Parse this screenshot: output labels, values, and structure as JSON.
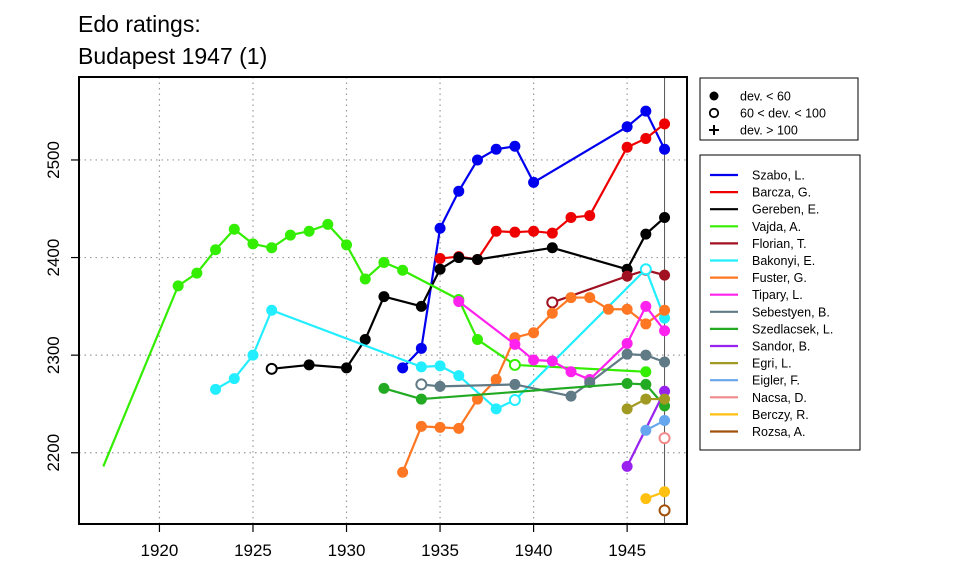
{
  "chart_data": {
    "type": "line",
    "title": [
      "Edo ratings:",
      "Budapest 1947 (1)"
    ],
    "xlabel": "",
    "ylabel": "",
    "xlim": [
      1915.7,
      1948.2
    ],
    "ylim": [
      2127,
      2585
    ],
    "xticks": [
      1920,
      1925,
      1930,
      1935,
      1940,
      1945
    ],
    "yticks": [
      2200,
      2300,
      2400,
      2500
    ],
    "grid": true,
    "vline": 1947,
    "legend_placement": "right",
    "marker_legend": [
      {
        "symbol": "filled-circle",
        "label": "dev. < 60"
      },
      {
        "symbol": "open-circle",
        "label": "60 < dev. < 100"
      },
      {
        "symbol": "plus",
        "label": "dev. > 100"
      }
    ],
    "series": [
      {
        "name": "Szabo, L.",
        "color": "#0000ee",
        "x": [
          1933,
          1934,
          1935,
          1936,
          1937,
          1938,
          1939,
          1940,
          1945,
          1946,
          1947
        ],
        "y": [
          2287,
          2307,
          2430,
          2468,
          2500,
          2511,
          2514,
          2477,
          2534,
          2550,
          2511
        ],
        "dev": [
          "f",
          "f",
          "f",
          "f",
          "f",
          "f",
          "f",
          "f",
          "f",
          "f",
          "f"
        ]
      },
      {
        "name": "Barcza, G.",
        "color": "#ee0000",
        "x": [
          1935,
          1936,
          1937,
          1938,
          1939,
          1940,
          1941,
          1942,
          1943,
          1945,
          1946,
          1947
        ],
        "y": [
          2399,
          2401,
          2398,
          2427,
          2426,
          2427,
          2425,
          2441,
          2443,
          2513,
          2522,
          2537
        ],
        "dev": [
          "f",
          "f",
          "f",
          "f",
          "f",
          "f",
          "f",
          "f",
          "f",
          "f",
          "f",
          "f"
        ]
      },
      {
        "name": "Gereben, E.",
        "color": "#000000",
        "x": [
          1926,
          1928,
          1930,
          1931,
          1932,
          1934,
          1935,
          1936,
          1937,
          1941,
          1945,
          1946,
          1947
        ],
        "y": [
          2286,
          2290,
          2287,
          2316,
          2360,
          2350,
          2388,
          2400,
          2398,
          2410,
          2388,
          2424,
          2441
        ],
        "dev": [
          "o",
          "f",
          "f",
          "f",
          "f",
          "f",
          "f",
          "f",
          "f",
          "f",
          "f",
          "f",
          "f"
        ]
      },
      {
        "name": "Vajda, A.",
        "color": "#33ee00",
        "x": [
          1917,
          1921,
          1922,
          1923,
          1924,
          1925,
          1926,
          1927,
          1928,
          1929,
          1930,
          1931,
          1932,
          1933,
          1936,
          1937,
          1939,
          1946
        ],
        "y": [
          2186,
          2371,
          2384,
          2408,
          2429,
          2414,
          2410,
          2423,
          2427,
          2434,
          2413,
          2378,
          2395,
          2387,
          2357,
          2316,
          2290,
          2283
        ],
        "dev": [
          "+",
          "f",
          "f",
          "f",
          "f",
          "f",
          "f",
          "f",
          "f",
          "f",
          "f",
          "f",
          "f",
          "f",
          "f",
          "f",
          "o",
          "f"
        ]
      },
      {
        "name": "Florian, T.",
        "color": "#a01020",
        "x": [
          1941,
          1945,
          1946,
          1947
        ],
        "y": [
          2354,
          2381,
          2387,
          2382
        ],
        "dev": [
          "o",
          "f",
          "f",
          "f"
        ]
      },
      {
        "name": "Bakonyi, E.",
        "color": "#22eeff",
        "x": [
          1923,
          1924,
          1925,
          1926,
          1934,
          1935,
          1936,
          1938,
          1939,
          1946,
          1947
        ],
        "y": [
          2265,
          2276,
          2300,
          2346,
          2288,
          2289,
          2279,
          2245,
          2254,
          2388,
          2338
        ],
        "dev": [
          "f",
          "f",
          "f",
          "f",
          "f",
          "f",
          "f",
          "f",
          "o",
          "o",
          "f"
        ]
      },
      {
        "name": "Fuster, G.",
        "color": "#ff7722",
        "x": [
          1933,
          1934,
          1935,
          1936,
          1937,
          1938,
          1939,
          1940,
          1941,
          1942,
          1943,
          1944,
          1945,
          1946,
          1947
        ],
        "y": [
          2180,
          2227,
          2226,
          2225,
          2255,
          2275,
          2318,
          2323,
          2343,
          2359,
          2359,
          2347,
          2347,
          2332,
          2346
        ],
        "dev": [
          "f",
          "f",
          "f",
          "f",
          "f",
          "f",
          "f",
          "f",
          "f",
          "f",
          "f",
          "f",
          "f",
          "f",
          "f"
        ]
      },
      {
        "name": "Tipary, L.",
        "color": "#ff22ee",
        "x": [
          1936,
          1939,
          1940,
          1941,
          1942,
          1943,
          1945,
          1946,
          1947
        ],
        "y": [
          2355,
          2311,
          2295,
          2294,
          2283,
          2275,
          2312,
          2350,
          2325
        ],
        "dev": [
          "f",
          "f",
          "f",
          "f",
          "f",
          "f",
          "f",
          "f",
          "f"
        ]
      },
      {
        "name": "Sebestyen, B.",
        "color": "#607a86",
        "x": [
          1934,
          1935,
          1939,
          1942,
          1943,
          1945,
          1946,
          1947
        ],
        "y": [
          2270,
          2268,
          2270,
          2258,
          2272,
          2301,
          2300,
          2293
        ],
        "dev": [
          "o",
          "f",
          "f",
          "f",
          "f",
          "f",
          "f",
          "f"
        ]
      },
      {
        "name": "Szedlacsek, L.",
        "color": "#22aa22",
        "x": [
          1932,
          1934,
          1945,
          1946,
          1947
        ],
        "y": [
          2266,
          2255,
          2271,
          2270,
          2248
        ],
        "dev": [
          "f",
          "f",
          "f",
          "f",
          "f"
        ]
      },
      {
        "name": "Sandor, B.",
        "color": "#9922ee",
        "x": [
          1945,
          1947
        ],
        "y": [
          2186,
          2263
        ],
        "dev": [
          "f",
          "f"
        ]
      },
      {
        "name": "Egri, L.",
        "color": "#a09a22",
        "x": [
          1945,
          1946,
          1947
        ],
        "y": [
          2245,
          2255,
          2255
        ],
        "dev": [
          "f",
          "f",
          "f"
        ]
      },
      {
        "name": "Eigler, F.",
        "color": "#66a6ee",
        "x": [
          1946,
          1947
        ],
        "y": [
          2223,
          2233
        ],
        "dev": [
          "f",
          "f"
        ]
      },
      {
        "name": "Nacsa, D.",
        "color": "#f08a8a",
        "x": [
          1947
        ],
        "y": [
          2215
        ],
        "dev": [
          "o"
        ]
      },
      {
        "name": "Berczy, R.",
        "color": "#ffc010",
        "x": [
          1946,
          1947
        ],
        "y": [
          2153,
          2160
        ],
        "dev": [
          "f",
          "f"
        ]
      },
      {
        "name": "Rozsa, A.",
        "color": "#a0500a",
        "x": [
          1947
        ],
        "y": [
          2141
        ],
        "dev": [
          "o"
        ]
      }
    ]
  }
}
